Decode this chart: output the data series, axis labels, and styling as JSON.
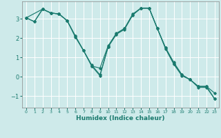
{
  "title": "",
  "xlabel": "Humidex (Indice chaleur)",
  "ylabel": "",
  "xlim": [
    -0.5,
    23.5
  ],
  "ylim": [
    -1.6,
    3.9
  ],
  "yticks": [
    -1,
    0,
    1,
    2,
    3
  ],
  "xticks": [
    0,
    1,
    2,
    3,
    4,
    5,
    6,
    7,
    8,
    9,
    10,
    11,
    12,
    13,
    14,
    15,
    16,
    17,
    18,
    19,
    20,
    21,
    22,
    23
  ],
  "bg_color": "#ceeaea",
  "grid_color": "#ffffff",
  "line_color": "#1a7a6e",
  "lines": [
    {
      "x": [
        0,
        1,
        2,
        3,
        4,
        5,
        6,
        7,
        8,
        9,
        10,
        11,
        12,
        13,
        14,
        15,
        16,
        17,
        18,
        19,
        20,
        21,
        22,
        23
      ],
      "y": [
        3.05,
        2.85,
        3.5,
        3.3,
        3.25,
        2.9,
        2.05,
        1.35,
        0.6,
        0.1,
        1.55,
        2.2,
        2.5,
        3.2,
        3.55,
        3.55,
        2.5,
        1.45,
        0.65,
        0.05,
        -0.15,
        -0.55,
        -0.55,
        -1.15
      ]
    },
    {
      "x": [
        0,
        1,
        2,
        3,
        4,
        5,
        6,
        7,
        8,
        9,
        10,
        11,
        12,
        13,
        14,
        15,
        16,
        17,
        18,
        19,
        20,
        21,
        22,
        23
      ],
      "y": [
        3.05,
        2.85,
        3.5,
        3.3,
        3.25,
        2.9,
        2.1,
        1.35,
        0.55,
        0.45,
        1.6,
        2.25,
        2.5,
        3.25,
        3.55,
        3.55,
        2.5,
        1.5,
        0.75,
        0.1,
        -0.15,
        -0.5,
        -0.5,
        -0.85
      ]
    },
    {
      "x": [
        0,
        2,
        3,
        4,
        5,
        6,
        7,
        8,
        9,
        10,
        11,
        12,
        13,
        14,
        15,
        16,
        17,
        18,
        19,
        20,
        21,
        22,
        23
      ],
      "y": [
        3.05,
        3.5,
        3.3,
        3.25,
        2.9,
        2.1,
        1.35,
        0.55,
        0.05,
        1.55,
        2.2,
        2.45,
        3.2,
        3.55,
        3.55,
        2.5,
        1.5,
        0.7,
        0.1,
        -0.15,
        -0.5,
        -0.5,
        -1.15
      ]
    }
  ]
}
